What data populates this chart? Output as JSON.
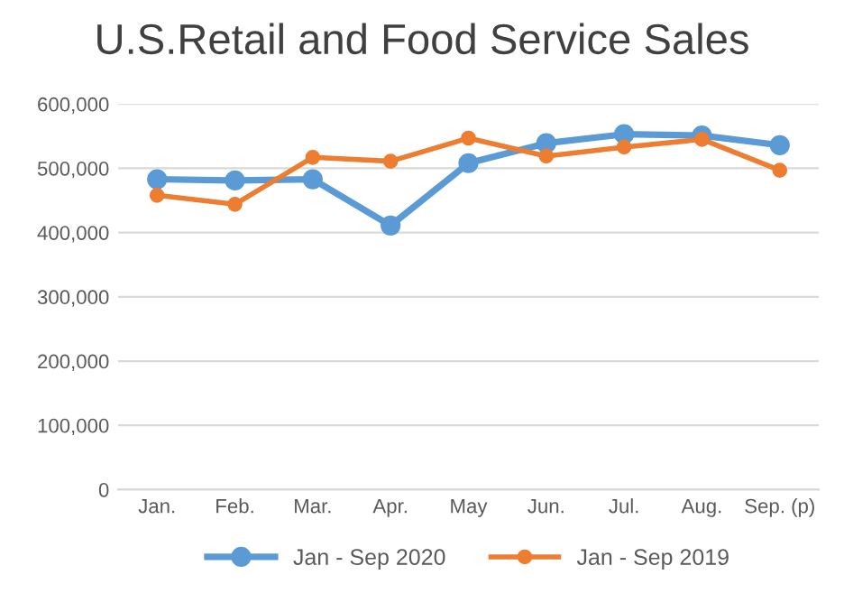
{
  "chart_data": {
    "type": "line",
    "title": "U.S.Retail and Food Service Sales",
    "categories": [
      "Jan.",
      "Feb.",
      "Mar.",
      "Apr.",
      "May",
      "Jun.",
      "Jul.",
      "Aug.",
      "Sep. (p)"
    ],
    "series": [
      {
        "name": "Jan - Sep 2020",
        "color": "#5b9bd5",
        "values": [
          483000,
          481000,
          483000,
          411000,
          508000,
          539000,
          553000,
          551000,
          536000
        ]
      },
      {
        "name": "Jan - Sep 2019",
        "color": "#ed7d31",
        "values": [
          458000,
          444000,
          517000,
          511000,
          547000,
          519000,
          533000,
          545000,
          497000
        ]
      }
    ],
    "ylim": [
      0,
      600000
    ],
    "yticks": [
      {
        "value": 0,
        "label": "0"
      },
      {
        "value": 100000,
        "label": "100,000"
      },
      {
        "value": 200000,
        "label": "200,000"
      },
      {
        "value": 300000,
        "label": "300,000"
      },
      {
        "value": 400000,
        "label": "400,000"
      },
      {
        "value": 500000,
        "label": "500,000"
      },
      {
        "value": 600000,
        "label": "600,000"
      }
    ],
    "grid": "y",
    "legend": "bottom",
    "marker": "circle",
    "line_style": "solid"
  }
}
